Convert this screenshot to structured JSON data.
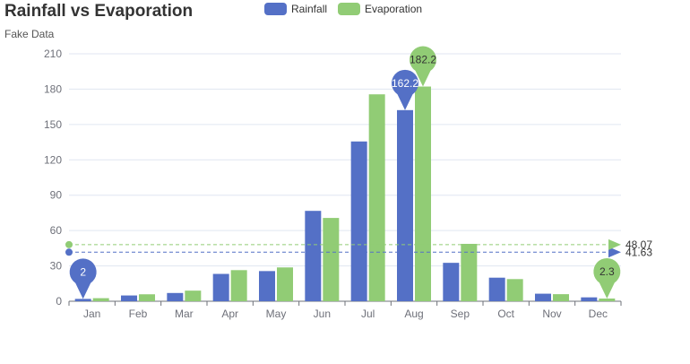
{
  "chart_data": {
    "type": "bar",
    "title": "Rainfall vs Evaporation",
    "subtitle": "Fake Data",
    "categories": [
      "Jan",
      "Feb",
      "Mar",
      "Apr",
      "May",
      "Jun",
      "Jul",
      "Aug",
      "Sep",
      "Oct",
      "Nov",
      "Dec"
    ],
    "series": [
      {
        "name": "Rainfall",
        "color": "#5470c6",
        "values": [
          2.0,
          4.9,
          7.0,
          23.2,
          25.6,
          76.7,
          135.6,
          162.2,
          32.6,
          20.0,
          6.4,
          3.3
        ],
        "markPoints": [
          {
            "type": "max",
            "category": "Aug",
            "value": 162.2,
            "label": "162.2"
          },
          {
            "type": "min",
            "category": "Jan",
            "value": 2.0,
            "label": "2"
          }
        ],
        "markLine": {
          "type": "average",
          "value": 41.63,
          "label": "41.63"
        }
      },
      {
        "name": "Evaporation",
        "color": "#91cc75",
        "values": [
          2.6,
          5.9,
          9.0,
          26.4,
          28.7,
          70.7,
          175.6,
          182.2,
          48.7,
          18.8,
          6.0,
          2.3
        ],
        "markPoints": [
          {
            "type": "max",
            "category": "Aug",
            "value": 182.2,
            "label": "182.2"
          },
          {
            "type": "min",
            "category": "Dec",
            "value": 2.3,
            "label": "2.3"
          }
        ],
        "markLine": {
          "type": "average",
          "value": 48.07,
          "label": "48.07"
        }
      }
    ],
    "yTicks": [
      "0",
      "30",
      "60",
      "90",
      "120",
      "150",
      "180",
      "210"
    ],
    "ylim": [
      0,
      210
    ],
    "legend_position": "top-center",
    "grid": true
  }
}
